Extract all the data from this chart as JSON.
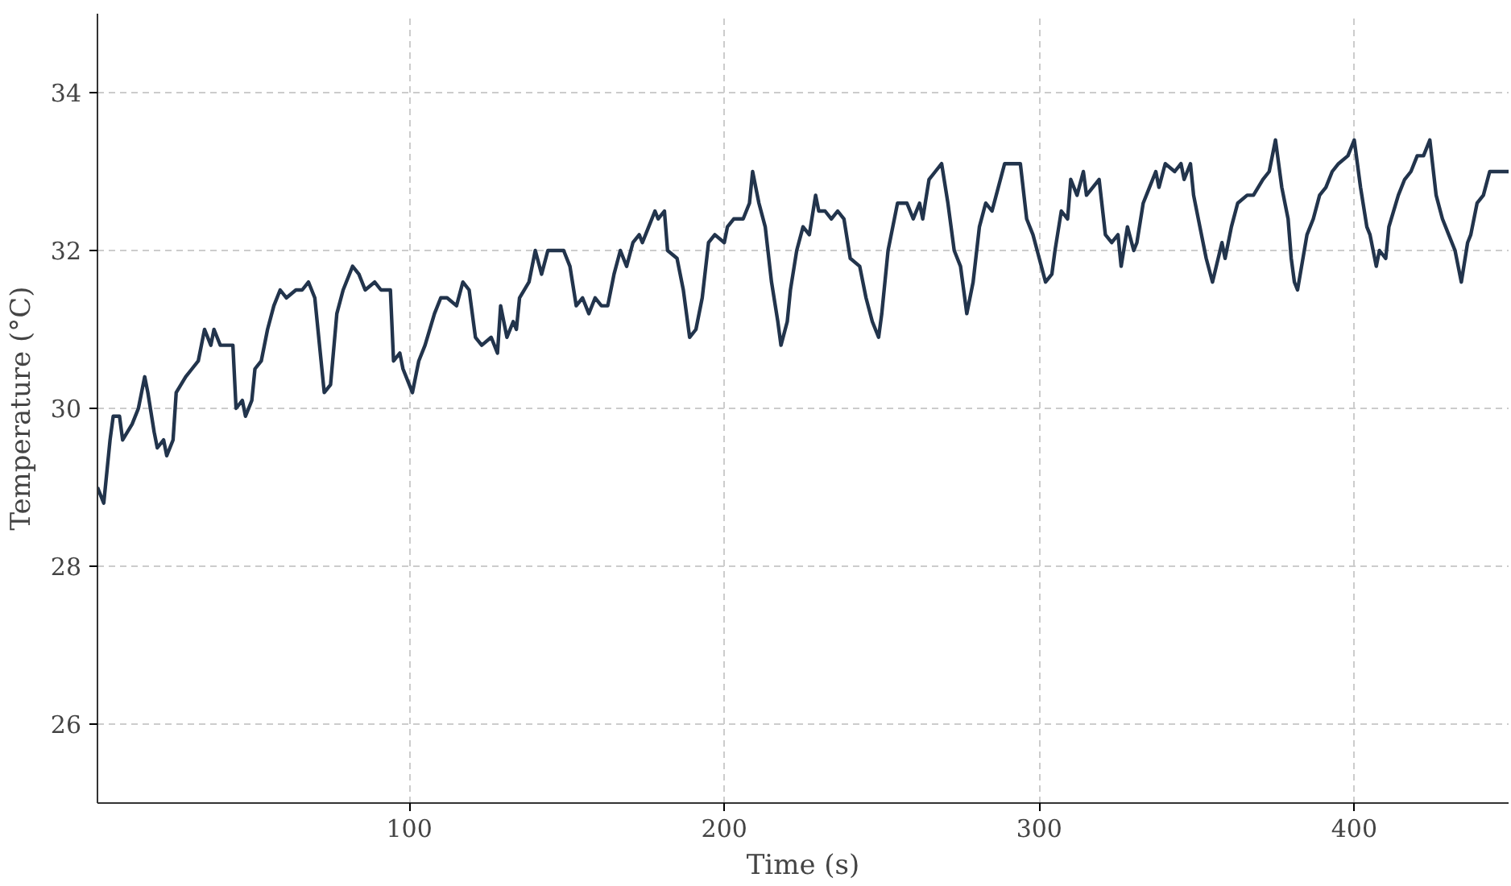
{
  "chart_data": {
    "type": "line",
    "xlabel": "Time (s)",
    "ylabel": "Temperature (°C)",
    "xlim": [
      1,
      449
    ],
    "ylim": [
      25,
      35
    ],
    "xticks": [
      100,
      200,
      300,
      400
    ],
    "yticks": [
      26,
      28,
      30,
      32,
      34
    ],
    "grid": true,
    "line_style": "solid",
    "series": [
      {
        "color": "#22344c",
        "x": [
          1,
          3,
          5,
          6,
          8,
          9,
          12,
          14,
          15,
          16,
          17,
          19,
          20,
          22,
          23,
          25,
          26,
          29,
          31,
          33,
          35,
          37,
          38,
          40,
          44,
          45,
          47,
          48,
          50,
          51,
          53,
          55,
          57,
          59,
          61,
          64,
          66,
          68,
          70,
          72,
          73,
          75,
          77,
          79,
          82,
          84,
          86,
          89,
          91,
          94,
          95,
          97,
          98,
          101,
          103,
          105,
          108,
          110,
          112,
          115,
          117,
          119,
          121,
          123,
          126,
          128,
          129,
          131,
          133,
          134,
          135,
          138,
          140,
          142,
          144,
          146,
          149,
          151,
          153,
          155,
          157,
          159,
          161,
          163,
          165,
          167,
          169,
          171,
          173,
          174,
          176,
          178,
          179,
          181,
          182,
          185,
          187,
          189,
          191,
          193,
          195,
          197,
          200,
          201,
          203,
          206,
          208,
          209,
          211,
          213,
          215,
          217,
          218,
          220,
          221,
          223,
          225,
          227,
          229,
          230,
          232,
          234,
          236,
          238,
          240,
          243,
          245,
          247,
          249,
          250,
          252,
          253,
          255,
          258,
          260,
          262,
          263,
          265,
          267,
          269,
          271,
          273,
          275,
          276,
          277,
          279,
          281,
          283,
          285,
          287,
          289,
          292,
          294,
          296,
          298,
          300,
          302,
          304,
          305,
          307,
          309,
          310,
          312,
          314,
          315,
          317,
          319,
          321,
          323,
          325,
          326,
          328,
          330,
          331,
          333,
          335,
          337,
          338,
          340,
          343,
          345,
          346,
          348,
          349,
          351,
          353,
          355,
          358,
          359,
          361,
          363,
          366,
          368,
          371,
          373,
          375,
          377,
          379,
          380,
          381,
          382,
          385,
          387,
          389,
          391,
          393,
          395,
          398,
          400,
          402,
          404,
          405,
          407,
          408,
          410,
          411,
          414,
          416,
          418,
          420,
          422,
          424,
          426,
          428,
          430,
          432,
          433,
          434,
          436,
          437,
          439,
          441,
          443,
          446,
          449
        ],
        "values": [
          29.0,
          28.8,
          29.6,
          29.9,
          29.9,
          29.6,
          29.8,
          30.0,
          30.2,
          30.4,
          30.2,
          29.7,
          29.5,
          29.6,
          29.4,
          29.6,
          30.2,
          30.4,
          30.5,
          30.6,
          31.0,
          30.8,
          31.0,
          30.8,
          30.8,
          30.0,
          30.1,
          29.9,
          30.1,
          30.5,
          30.6,
          31.0,
          31.3,
          31.5,
          31.4,
          31.5,
          31.5,
          31.6,
          31.4,
          30.6,
          30.2,
          30.3,
          31.2,
          31.5,
          31.8,
          31.7,
          31.5,
          31.6,
          31.5,
          31.5,
          30.6,
          30.7,
          30.5,
          30.2,
          30.6,
          30.8,
          31.2,
          31.4,
          31.4,
          31.3,
          31.6,
          31.5,
          30.9,
          30.8,
          30.9,
          30.7,
          31.3,
          30.9,
          31.1,
          31.0,
          31.4,
          31.6,
          32.0,
          31.7,
          32.0,
          32.0,
          32.0,
          31.8,
          31.3,
          31.4,
          31.2,
          31.4,
          31.3,
          31.3,
          31.7,
          32.0,
          31.8,
          32.1,
          32.2,
          32.1,
          32.3,
          32.5,
          32.4,
          32.5,
          32.0,
          31.9,
          31.5,
          30.9,
          31.0,
          31.4,
          32.1,
          32.2,
          32.1,
          32.3,
          32.4,
          32.4,
          32.6,
          33.0,
          32.6,
          32.3,
          31.6,
          31.1,
          30.8,
          31.1,
          31.5,
          32.0,
          32.3,
          32.2,
          32.7,
          32.5,
          32.5,
          32.4,
          32.5,
          32.4,
          31.9,
          31.8,
          31.4,
          31.1,
          30.9,
          31.2,
          32.0,
          32.2,
          32.6,
          32.6,
          32.4,
          32.6,
          32.4,
          32.9,
          33.0,
          33.1,
          32.6,
          32.0,
          31.8,
          31.5,
          31.2,
          31.6,
          32.3,
          32.6,
          32.5,
          32.8,
          33.1,
          33.1,
          33.1,
          32.4,
          32.2,
          31.9,
          31.6,
          31.7,
          32.0,
          32.5,
          32.4,
          32.9,
          32.7,
          33.0,
          32.7,
          32.8,
          32.9,
          32.2,
          32.1,
          32.2,
          31.8,
          32.3,
          32.0,
          32.1,
          32.6,
          32.8,
          33.0,
          32.8,
          33.1,
          33.0,
          33.1,
          32.9,
          33.1,
          32.7,
          32.3,
          31.9,
          31.6,
          32.1,
          31.9,
          32.3,
          32.6,
          32.7,
          32.7,
          32.9,
          33.0,
          33.4,
          32.8,
          32.4,
          31.9,
          31.6,
          31.5,
          32.2,
          32.4,
          32.7,
          32.8,
          33.0,
          33.1,
          33.2,
          33.4,
          32.8,
          32.3,
          32.2,
          31.8,
          32.0,
          31.9,
          32.3,
          32.7,
          32.9,
          33.0,
          33.2,
          33.2,
          33.4,
          32.7,
          32.4,
          32.2,
          32.0,
          31.8,
          31.6,
          32.1,
          32.2,
          32.6,
          32.7,
          33.0,
          33.0,
          33.0
        ]
      }
    ]
  }
}
